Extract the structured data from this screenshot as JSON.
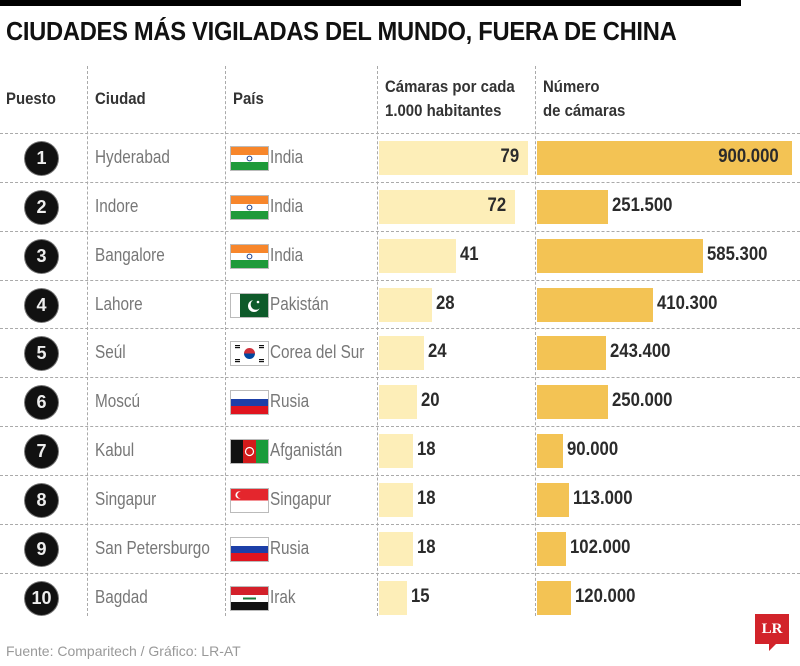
{
  "title": "CIUDADES MÁS VIGILADAS DEL MUNDO, FUERA DE CHINA",
  "headers": {
    "rank": "Puesto",
    "city": "Ciudad",
    "country": "País",
    "rate_line1": "Cámaras por cada",
    "rate_line2": "1.000 habitantes",
    "count_line1": "Número",
    "count_line2": "de cámaras"
  },
  "rows": [
    {
      "rank": "1",
      "city": "Hyderabad",
      "country": "India",
      "flag": "india-flag",
      "rate": "79",
      "cameras": "900.000"
    },
    {
      "rank": "2",
      "city": "Indore",
      "country": "India",
      "flag": "india-flag",
      "rate": "72",
      "cameras": "251.500"
    },
    {
      "rank": "3",
      "city": "Bangalore",
      "country": "India",
      "flag": "india-flag",
      "rate": "41",
      "cameras": "585.300"
    },
    {
      "rank": "4",
      "city": "Lahore",
      "country": "Pakistán",
      "flag": "pakistan-flag",
      "rate": "28",
      "cameras": "410.300"
    },
    {
      "rank": "5",
      "city": "Seúl",
      "country": "Corea del Sur",
      "flag": "south-korea-flag",
      "rate": "24",
      "cameras": "243.400"
    },
    {
      "rank": "6",
      "city": "Moscú",
      "country": "Rusia",
      "flag": "russia-flag",
      "rate": "20",
      "cameras": "250.000"
    },
    {
      "rank": "7",
      "city": "Kabul",
      "country": "Afganistán",
      "flag": "afghanistan-flag",
      "rate": "18",
      "cameras": "90.000"
    },
    {
      "rank": "8",
      "city": "Singapur",
      "country": "Singapur",
      "flag": "singapore-flag",
      "rate": "18",
      "cameras": "113.000"
    },
    {
      "rank": "9",
      "city": "San Petersburgo",
      "country": "Rusia",
      "flag": "russia-flag",
      "rate": "18",
      "cameras": "102.000"
    },
    {
      "rank": "10",
      "city": "Bagdad",
      "country": "Irak",
      "flag": "iraq-flag",
      "rate": "15",
      "cameras": "120.000"
    }
  ],
  "footer": "Fuente: Comparitech / Gráfico: LR-AT",
  "logo": "LR",
  "colors": {
    "rate_bar": "#fdeeb8",
    "camera_bar": "#f3c354",
    "badge": "#111111",
    "logo": "#d2232a"
  },
  "chart_data": {
    "type": "table",
    "title": "CIUDADES MÁS VIGILADAS DEL MUNDO, FUERA DE CHINA",
    "categories": [
      "Hyderabad",
      "Indore",
      "Bangalore",
      "Lahore",
      "Seúl",
      "Moscú",
      "Kabul",
      "Singapur",
      "San Petersburgo",
      "Bagdad"
    ],
    "countries": [
      "India",
      "India",
      "India",
      "Pakistán",
      "Corea del Sur",
      "Rusia",
      "Afganistán",
      "Singapur",
      "Rusia",
      "Irak"
    ],
    "series": [
      {
        "name": "Cámaras por cada 1.000 habitantes",
        "values": [
          79,
          72,
          41,
          28,
          24,
          20,
          18,
          18,
          18,
          15
        ]
      },
      {
        "name": "Número de cámaras",
        "values": [
          900000,
          251500,
          585300,
          410300,
          243400,
          250000,
          90000,
          113000,
          102000,
          120000
        ]
      }
    ],
    "xlabel": "",
    "ylabel": "",
    "source": "Fuente: Comparitech / Gráfico: LR-AT"
  }
}
